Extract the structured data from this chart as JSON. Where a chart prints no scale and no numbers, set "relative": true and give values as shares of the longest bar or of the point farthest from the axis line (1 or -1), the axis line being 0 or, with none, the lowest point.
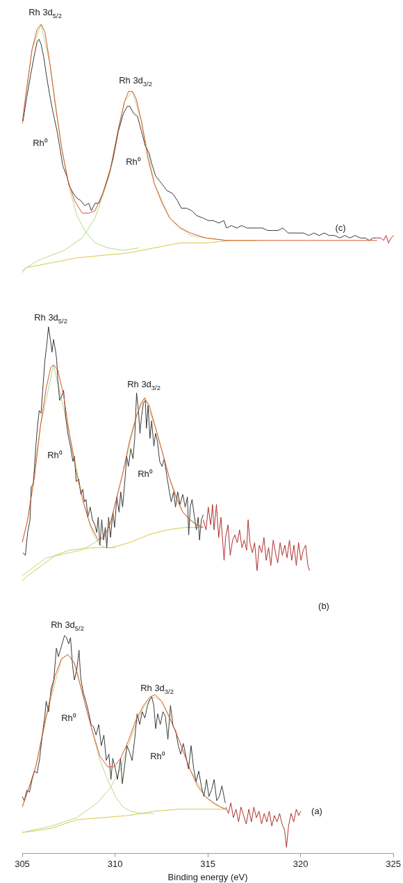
{
  "chart_data": [
    {
      "type": "line",
      "relative": true,
      "tick_labels": false,
      "xlim": [
        305,
        325
      ],
      "annotations": [
        "Rh 3d$_{5/2}$",
        "Rh 3d$_{3/2}$",
        "Rh⁰",
        "Rh⁰",
        "(c)"
      ],
      "series": [
        {
          "color": "#d8c840",
          "x": [
            305.0,
            305.18,
            306.56,
            307.94,
            309.33,
            310.71,
            312.09,
            313.47,
            314.86,
            316.24,
            317.62
          ],
          "values": [
            0,
            0.02,
            0.04,
            0.06,
            0.07,
            0.08,
            0.1,
            0.12,
            0.12,
            0.13,
            0.13
          ]
        },
        {
          "color": "#b8d88a",
          "x": [
            305.0,
            305.53,
            306.01,
            306.49,
            307.12,
            307.53,
            307.94,
            308.36,
            308.91,
            309.6,
            310.43,
            311.26
          ],
          "values": [
            0.6,
            0.9,
            1.0,
            0.84,
            0.5,
            0.34,
            0.23,
            0.17,
            0.12,
            0.1,
            0.09,
            0.1
          ]
        },
        {
          "color": "#b8d88a",
          "x": [
            305.0,
            305.87,
            307.25,
            308.22,
            308.91,
            309.33,
            309.74,
            310.16,
            310.5,
            310.92,
            311.4,
            312.09,
            312.92,
            314.03,
            314.86,
            315.97
          ],
          "values": [
            0.01,
            0.05,
            0.09,
            0.14,
            0.22,
            0.31,
            0.41,
            0.57,
            0.69,
            0.73,
            0.61,
            0.36,
            0.22,
            0.15,
            0.14,
            0.13
          ]
        },
        {
          "color": "#3a3a3a",
          "x": [
            305.04,
            305.25,
            305.46,
            305.66,
            305.8,
            305.9,
            306.01,
            306.15,
            306.31,
            306.42,
            306.56,
            306.7,
            306.87,
            307.05,
            307.18,
            307.39,
            307.53,
            307.74,
            307.94,
            308.15,
            308.36,
            308.57,
            308.71,
            308.91,
            309.12,
            309.33,
            309.6,
            309.88,
            310.16,
            310.43,
            310.64,
            310.78,
            310.99,
            311.19,
            311.4,
            311.61,
            311.82,
            311.95,
            312.16,
            312.37,
            312.58,
            312.78,
            313.06,
            313.34,
            313.54,
            313.82,
            314.1,
            314.37,
            314.72,
            315.0,
            315.27,
            315.55,
            315.83,
            315.97,
            316.24,
            316.52,
            316.79,
            317.07,
            317.35,
            317.62,
            317.9,
            318.18,
            318.45,
            318.73,
            319.0,
            319.28,
            319.56,
            319.83,
            320.11,
            320.39,
            320.66,
            320.94,
            321.22,
            321.49,
            321.77,
            322.05,
            322.32,
            322.6,
            322.87,
            323.15,
            323.43,
            323.64,
            323.84,
            324.05
          ],
          "values": [
            0.61,
            0.71,
            0.8,
            0.88,
            0.93,
            0.94,
            0.92,
            0.87,
            0.79,
            0.74,
            0.68,
            0.63,
            0.57,
            0.49,
            0.43,
            0.39,
            0.35,
            0.32,
            0.3,
            0.29,
            0.27,
            0.28,
            0.25,
            0.28,
            0.28,
            0.32,
            0.38,
            0.46,
            0.57,
            0.64,
            0.67,
            0.67,
            0.64,
            0.63,
            0.57,
            0.51,
            0.48,
            0.44,
            0.39,
            0.37,
            0.35,
            0.33,
            0.32,
            0.29,
            0.26,
            0.26,
            0.25,
            0.23,
            0.22,
            0.21,
            0.21,
            0.2,
            0.21,
            0.18,
            0.19,
            0.18,
            0.19,
            0.18,
            0.18,
            0.18,
            0.18,
            0.17,
            0.17,
            0.17,
            0.18,
            0.16,
            0.16,
            0.16,
            0.16,
            0.15,
            0.16,
            0.15,
            0.16,
            0.15,
            0.15,
            0.14,
            0.15,
            0.14,
            0.15,
            0.14,
            0.14,
            0.13,
            0.14,
            0.14
          ]
        },
        {
          "color": "#b03030",
          "x": [
            324.05,
            324.26,
            324.4,
            324.54,
            324.67,
            324.81,
            324.95
          ],
          "values": [
            0.14,
            0.14,
            0.13,
            0.15,
            0.12,
            0.14,
            0.15
          ]
        },
        {
          "color": "#d8562e",
          "x": [
            305.0,
            305.18,
            305.53,
            305.8,
            306.01,
            306.22,
            306.49,
            306.77,
            307.12,
            307.46,
            307.81,
            308.22,
            308.57,
            308.91,
            309.33,
            309.74,
            310.16,
            310.5,
            310.71,
            310.92,
            311.12,
            311.4,
            311.75,
            312.09,
            312.51,
            312.92,
            313.47,
            314.03,
            314.86,
            315.97,
            317.62,
            320.39,
            324.05
          ],
          "values": [
            0.6,
            0.71,
            0.9,
            0.98,
            1.0,
            0.97,
            0.84,
            0.68,
            0.5,
            0.37,
            0.29,
            0.24,
            0.24,
            0.25,
            0.32,
            0.42,
            0.58,
            0.69,
            0.73,
            0.73,
            0.7,
            0.61,
            0.46,
            0.36,
            0.28,
            0.22,
            0.18,
            0.16,
            0.14,
            0.13,
            0.13,
            0.13,
            0.13
          ]
        }
      ]
    },
    {
      "type": "line",
      "relative": true,
      "tick_labels": false,
      "xlim": [
        305,
        325
      ],
      "annotations": [
        "Rh 3d$_{5/2}$",
        "Rh 3d$_{3/2}$",
        "Rh⁰",
        "Rh⁰",
        "(b)"
      ],
      "series": [
        {
          "color": "#d8c840",
          "x": [
            305.0,
            305.29,
            306.04,
            306.78,
            307.53,
            308.77,
            309.77,
            310.76,
            311.76,
            312.75,
            313.75,
            314.72
          ],
          "values": [
            0,
            0.02,
            0.06,
            0.1,
            0.12,
            0.13,
            0.13,
            0.15,
            0.18,
            0.2,
            0.21,
            0.21
          ]
        },
        {
          "color": "#b8d88a",
          "x": [
            305.0,
            305.29,
            305.98,
            306.68,
            307.53,
            308.28,
            308.77,
            309.15,
            309.52,
            310.02
          ],
          "values": [
            0.15,
            0.24,
            0.61,
            0.85,
            0.58,
            0.31,
            0.19,
            0.14,
            0.13,
            0.13
          ]
        },
        {
          "color": "#b8d88a",
          "x": [
            305.0,
            306.29,
            308.15,
            308.9,
            309.27,
            309.71,
            310.39,
            311.14,
            311.57,
            312.13,
            312.88,
            313.62,
            314.37,
            314.72
          ],
          "values": [
            0.02,
            0.09,
            0.12,
            0.15,
            0.17,
            0.22,
            0.42,
            0.65,
            0.72,
            0.61,
            0.41,
            0.27,
            0.22,
            0.21
          ]
        },
        {
          "color": "#3a3a3a",
          "x": [
            305.04,
            305.17,
            305.29,
            305.42,
            305.48,
            305.6,
            305.73,
            305.81,
            305.91,
            306.01,
            306.1,
            306.22,
            306.32,
            306.41,
            306.51,
            306.6,
            306.68,
            306.78,
            306.85,
            306.91,
            307.01,
            307.13,
            307.22,
            307.34,
            307.47,
            307.59,
            307.72,
            307.8,
            307.9,
            308.03,
            308.15,
            308.25,
            308.34,
            308.43,
            308.52,
            308.65,
            308.77,
            308.9,
            309.0,
            309.08,
            309.17,
            309.27,
            309.37,
            309.46,
            309.54,
            309.64,
            309.74,
            309.87,
            309.96,
            310.08,
            310.2,
            310.29,
            310.39,
            310.52,
            310.61,
            310.7,
            310.83,
            310.95,
            311.04,
            311.14,
            311.24,
            311.32,
            311.41,
            311.51,
            311.61,
            311.67,
            311.76,
            311.86,
            311.95,
            312.07,
            312.16,
            312.26,
            312.38,
            312.51,
            312.63,
            312.75,
            312.88,
            313.0,
            313.13,
            313.23,
            313.35,
            313.47,
            313.62,
            313.75,
            313.87,
            313.94,
            314.02,
            314.12,
            314.25,
            314.35,
            314.45,
            314.52,
            314.62,
            314.72
          ],
          "values": [
            0.11,
            0.1,
            0.19,
            0.24,
            0.37,
            0.38,
            0.53,
            0.6,
            0.67,
            0.66,
            0.75,
            0.87,
            0.93,
            1.0,
            0.95,
            0.9,
            0.95,
            0.91,
            0.87,
            0.79,
            0.71,
            0.73,
            0.75,
            0.64,
            0.57,
            0.53,
            0.47,
            0.49,
            0.39,
            0.4,
            0.34,
            0.36,
            0.31,
            0.32,
            0.25,
            0.29,
            0.24,
            0.22,
            0.19,
            0.25,
            0.14,
            0.24,
            0.16,
            0.21,
            0.13,
            0.25,
            0.17,
            0.27,
            0.21,
            0.33,
            0.27,
            0.35,
            0.29,
            0.4,
            0.49,
            0.45,
            0.52,
            0.48,
            0.56,
            0.74,
            0.67,
            0.58,
            0.65,
            0.7,
            0.71,
            0.6,
            0.69,
            0.56,
            0.63,
            0.53,
            0.58,
            0.55,
            0.47,
            0.45,
            0.48,
            0.42,
            0.36,
            0.31,
            0.35,
            0.29,
            0.35,
            0.3,
            0.34,
            0.29,
            0.33,
            0.18,
            0.29,
            0.32,
            0.25,
            0.2,
            0.25,
            0.16,
            0.24,
            0.26
          ]
        },
        {
          "color": "#b03030",
          "x": [
            314.72,
            314.87,
            314.99,
            315.12,
            315.22,
            315.3,
            315.43,
            315.55,
            315.67,
            315.84,
            315.92,
            316.05,
            316.17,
            316.3,
            316.42,
            316.55,
            316.67,
            316.8,
            316.92,
            317.05,
            317.13,
            317.23,
            317.36,
            317.48,
            317.61,
            317.73,
            317.86,
            317.98,
            318.1,
            318.23,
            318.35,
            318.48,
            318.6,
            318.72,
            318.85,
            318.97,
            319.1,
            319.22,
            319.35,
            319.47,
            319.59,
            319.72,
            319.84,
            319.97,
            320.09,
            320.22,
            320.34,
            320.43
          ],
          "values": [
            0.24,
            0.2,
            0.29,
            0.22,
            0.3,
            0.2,
            0.3,
            0.17,
            0.25,
            0.08,
            0.17,
            0.22,
            0.1,
            0.16,
            0.18,
            0.15,
            0.2,
            0.13,
            0.16,
            0.12,
            0.24,
            0.15,
            0.11,
            0.15,
            0.04,
            0.14,
            0.11,
            0.17,
            0.08,
            0.13,
            0.06,
            0.16,
            0.11,
            0.07,
            0.15,
            0.1,
            0.14,
            0.09,
            0.16,
            0.08,
            0.14,
            0.06,
            0.15,
            0.08,
            0.12,
            0.14,
            0.06,
            0.04
          ]
        },
        {
          "color": "#d8562e",
          "x": [
            305.0,
            305.29,
            305.66,
            305.98,
            306.29,
            306.53,
            306.68,
            306.91,
            307.22,
            307.53,
            307.9,
            308.28,
            308.65,
            309.08,
            309.39,
            309.71,
            310.02,
            310.39,
            310.76,
            311.14,
            311.39,
            311.57,
            311.82,
            312.13,
            312.51,
            312.88,
            313.25,
            313.62,
            313.99,
            314.37,
            314.72
          ],
          "values": [
            0.15,
            0.24,
            0.41,
            0.61,
            0.76,
            0.84,
            0.85,
            0.83,
            0.73,
            0.58,
            0.43,
            0.31,
            0.22,
            0.16,
            0.17,
            0.22,
            0.31,
            0.42,
            0.55,
            0.65,
            0.7,
            0.72,
            0.69,
            0.61,
            0.51,
            0.41,
            0.33,
            0.27,
            0.24,
            0.22,
            0.21
          ]
        }
      ]
    },
    {
      "type": "line",
      "relative": true,
      "tick_labels": "x",
      "xlim": [
        305,
        325
      ],
      "xticks": [
        305,
        310,
        315,
        320,
        325
      ],
      "xlabel": "Binding energy (eV)",
      "annotations": [
        "Rh 3d$_{5/2}$",
        "Rh 3d$_{3/2}$",
        "Rh⁰",
        "Rh⁰",
        "(a)"
      ],
      "series": [
        {
          "color": "#d8c840",
          "x": [
            305.0,
            305.87,
            306.56,
            307.25,
            307.94,
            309.33,
            310.71,
            312.09,
            313.47,
            314.86,
            315.97
          ],
          "values": [
            0.07,
            0.08,
            0.09,
            0.11,
            0.13,
            0.14,
            0.15,
            0.17,
            0.18,
            0.18,
            0.18
          ]
        },
        {
          "color": "#b8d88a",
          "x": [
            305.0,
            305.73,
            306.42,
            307.12,
            307.46,
            307.81,
            308.5,
            309.19,
            309.6,
            310.02,
            310.43,
            310.85,
            311.4,
            312.09
          ],
          "values": [
            0.19,
            0.38,
            0.66,
            0.89,
            0.91,
            0.87,
            0.64,
            0.41,
            0.32,
            0.24,
            0.19,
            0.17,
            0.16,
            0.16
          ]
        },
        {
          "color": "#b8d88a",
          "x": [
            305.0,
            306.56,
            307.94,
            309.05,
            309.74,
            310.3,
            310.71,
            311.12,
            311.54,
            311.88,
            312.16,
            312.51,
            313.2,
            314.03,
            314.86,
            315.69,
            315.97
          ],
          "values": [
            0.07,
            0.1,
            0.14,
            0.21,
            0.28,
            0.37,
            0.48,
            0.58,
            0.66,
            0.7,
            0.71,
            0.69,
            0.56,
            0.37,
            0.24,
            0.19,
            0.18
          ]
        },
        {
          "color": "#3a3a3a",
          "x": [
            305.0,
            305.11,
            305.25,
            305.39,
            305.53,
            305.66,
            305.8,
            305.94,
            306.08,
            306.22,
            306.29,
            306.42,
            306.56,
            306.7,
            306.84,
            306.95,
            307.05,
            307.18,
            307.28,
            307.39,
            307.5,
            307.6,
            307.71,
            307.81,
            307.94,
            308.06,
            308.15,
            308.29,
            308.43,
            308.57,
            308.71,
            308.84,
            308.98,
            309.12,
            309.26,
            309.4,
            309.53,
            309.67,
            309.78,
            309.88,
            310.02,
            310.13,
            310.3,
            310.39,
            310.5,
            310.64,
            310.78,
            310.92,
            311.06,
            311.19,
            311.33,
            311.47,
            311.61,
            311.75,
            311.89,
            311.98,
            312.09,
            312.19,
            312.3,
            312.44,
            312.58,
            312.71,
            312.85,
            312.99,
            313.13,
            313.27,
            313.41,
            313.54,
            313.68,
            313.82,
            313.96,
            314.1,
            314.24,
            314.37,
            314.51,
            314.65,
            314.79,
            314.93,
            315.06,
            315.2,
            315.34,
            315.48,
            315.62,
            315.76,
            315.94
          ],
          "values": [
            0.24,
            0.22,
            0.27,
            0.26,
            0.32,
            0.36,
            0.35,
            0.42,
            0.53,
            0.62,
            0.69,
            0.64,
            0.75,
            0.79,
            0.94,
            0.9,
            0.93,
            0.97,
            1.0,
            0.99,
            0.96,
            0.99,
            0.86,
            0.79,
            0.84,
            0.93,
            0.8,
            0.73,
            0.69,
            0.64,
            0.58,
            0.57,
            0.53,
            0.58,
            0.48,
            0.53,
            0.41,
            0.44,
            0.32,
            0.42,
            0.37,
            0.32,
            0.42,
            0.3,
            0.37,
            0.48,
            0.45,
            0.41,
            0.51,
            0.63,
            0.58,
            0.64,
            0.61,
            0.67,
            0.7,
            0.71,
            0.67,
            0.56,
            0.63,
            0.58,
            0.64,
            0.62,
            0.51,
            0.67,
            0.57,
            0.55,
            0.48,
            0.44,
            0.49,
            0.43,
            0.37,
            0.48,
            0.37,
            0.31,
            0.36,
            0.29,
            0.24,
            0.32,
            0.24,
            0.27,
            0.32,
            0.22,
            0.24,
            0.29,
            0.21
          ]
        },
        {
          "color": "#b03030",
          "x": [
            315.97,
            316.11,
            316.24,
            316.38,
            316.52,
            316.66,
            316.79,
            316.93,
            317.07,
            317.21,
            317.35,
            317.48,
            317.62,
            317.76,
            317.9,
            318.04,
            318.18,
            318.31,
            318.45,
            318.59,
            318.73,
            318.87,
            319.0,
            319.14,
            319.24,
            319.35,
            319.49,
            319.63,
            319.77,
            319.9,
            320.0
          ],
          "values": [
            0.19,
            0.16,
            0.21,
            0.14,
            0.18,
            0.12,
            0.19,
            0.15,
            0.11,
            0.18,
            0.12,
            0.19,
            0.14,
            0.17,
            0.11,
            0.16,
            0.12,
            0.17,
            0.1,
            0.15,
            0.12,
            0.16,
            0.11,
            0.08,
            0,
            0.1,
            0.16,
            0.12,
            0.18,
            0.15,
            0.17
          ]
        },
        {
          "color": "#d8562e",
          "x": [
            305.0,
            305.32,
            305.73,
            306.08,
            306.42,
            306.77,
            307.12,
            307.46,
            307.81,
            308.15,
            308.5,
            308.84,
            309.19,
            309.6,
            309.95,
            310.3,
            310.71,
            311.12,
            311.54,
            311.88,
            312.16,
            312.51,
            312.85,
            313.2,
            313.61,
            314.03,
            314.44,
            314.86,
            315.27,
            315.69,
            315.97
          ],
          "values": [
            0.19,
            0.27,
            0.38,
            0.53,
            0.67,
            0.81,
            0.89,
            0.91,
            0.87,
            0.76,
            0.64,
            0.53,
            0.43,
            0.38,
            0.38,
            0.42,
            0.5,
            0.6,
            0.67,
            0.71,
            0.72,
            0.69,
            0.63,
            0.56,
            0.47,
            0.37,
            0.29,
            0.24,
            0.21,
            0.19,
            0.18
          ]
        }
      ]
    }
  ]
}
